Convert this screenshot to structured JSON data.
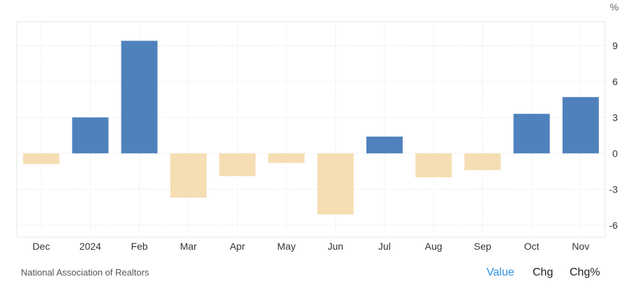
{
  "chart_data": {
    "type": "bar",
    "categories": [
      "Dec",
      "2024",
      "Feb",
      "Mar",
      "Apr",
      "May",
      "Jun",
      "Jul",
      "Aug",
      "Sep",
      "Oct",
      "Nov"
    ],
    "values": [
      -0.9,
      3.0,
      9.4,
      -3.7,
      -1.9,
      -0.8,
      -5.1,
      1.4,
      -2.0,
      -1.4,
      3.3,
      4.7
    ],
    "ylim": [
      -7,
      11
    ],
    "yticks": [
      -6,
      -3,
      0,
      3,
      6,
      9
    ],
    "unit": "%",
    "grid": true,
    "colors": {
      "positive": "#4f81bd",
      "negative": "#f5deb3"
    }
  },
  "footer": {
    "source": "National Association of Realtors",
    "buttons": {
      "value": "Value",
      "chg": "Chg",
      "chg_pct": "Chg%"
    },
    "active_color": "#2b8fdf"
  }
}
